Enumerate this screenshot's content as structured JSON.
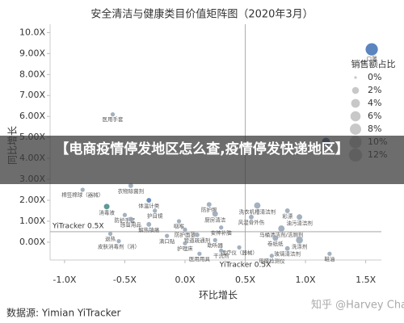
{
  "chart_data": {
    "type": "scatter",
    "title": "安全清洁与健康类目价值矩阵图（2020年3月）",
    "x_label": "环比增长",
    "y_label": "同比增长",
    "xlim": [
      -1.12,
      1.63
    ],
    "ylim": [
      -0.85,
      10.4
    ],
    "xticks": [
      {
        "value": -1.0,
        "label": "-1.0X"
      },
      {
        "value": -0.5,
        "label": "-0.5X"
      },
      {
        "value": 0,
        "label": "0.0X"
      },
      {
        "value": 0.5,
        "label": "0.5X"
      },
      {
        "value": 1.0,
        "label": "1.0X"
      },
      {
        "value": 1.5,
        "label": "1.5X"
      }
    ],
    "yticks": [
      {
        "value": 0,
        "label": "0.00X"
      },
      {
        "value": 1,
        "label": "1.00X"
      },
      {
        "value": 2,
        "label": "2.00X"
      },
      {
        "value": 3,
        "label": "3.00X"
      },
      {
        "value": 4,
        "label": "4.00X"
      },
      {
        "value": 5,
        "label": "5.00X"
      },
      {
        "value": 6,
        "label": "6.00X"
      },
      {
        "value": 7,
        "label": "7.00X"
      },
      {
        "value": 8,
        "label": "8.00X"
      },
      {
        "value": 9,
        "label": "9.00X"
      },
      {
        "value": 10,
        "label": "10.0X"
      }
    ],
    "ref_line": {
      "x": 0.5,
      "y": 0.5,
      "label": "YiTracker 0.5X"
    },
    "size_legend_title": "销售额占比",
    "size_legend": [
      {
        "value": 0,
        "label": "0%"
      },
      {
        "value": 2,
        "label": "2%"
      },
      {
        "value": 4,
        "label": "4%"
      },
      {
        "value": 6,
        "label": "6%"
      },
      {
        "value": 8,
        "label": "8%"
      },
      {
        "value": 10,
        "label": "10%"
      },
      {
        "value": 12,
        "label": "12%"
      }
    ],
    "points": [
      {
        "label": "口罩",
        "x": 1.55,
        "y": 9.2,
        "size": 10,
        "color": "#4a78b8"
      },
      {
        "label": null,
        "x": 1.17,
        "y": 4.8,
        "size": 3,
        "color": "#2e4f80"
      },
      {
        "label": "医用手套",
        "x": -0.6,
        "y": 6.1,
        "size": 0.3,
        "color": "#9aa9b8"
      },
      {
        "label": "棉签棉球（器械）",
        "x": -0.85,
        "y": 2.5,
        "size": 0.3,
        "color": "#9aa9b8"
      },
      {
        "label": "衣物除菌剂",
        "x": -0.45,
        "y": 2.7,
        "size": 0.5,
        "color": "#9aa9b8"
      },
      {
        "label": "消毒液",
        "x": -0.65,
        "y": 1.7,
        "size": 1,
        "color": "#4d8f8a"
      },
      {
        "label": "体温计类",
        "x": -0.3,
        "y": 2.0,
        "size": 0.5,
        "color": "#5b84b1"
      },
      {
        "label": "防护手套",
        "x": -0.5,
        "y": 1.3,
        "size": 0.3,
        "color": "#9aa9b8"
      },
      {
        "label": "护目镜",
        "x": -0.25,
        "y": 1.5,
        "size": 0.3,
        "color": "#9aa9b8"
      },
      {
        "label": "感冒用品",
        "x": -0.45,
        "y": 1.1,
        "size": 0.5,
        "color": "#9aa9b8"
      },
      {
        "label": "解热镇痛",
        "x": -0.3,
        "y": 0.85,
        "size": 0.5,
        "color": "#9aa9b8"
      },
      {
        "label": "咽喉",
        "x": -0.05,
        "y": 1.0,
        "size": 0.3,
        "color": "#9aa9b8"
      },
      {
        "label": "退热",
        "x": -0.62,
        "y": 0.4,
        "size": 0.3,
        "color": "#9aa9b8"
      },
      {
        "label": "滴口贴",
        "x": -0.15,
        "y": 0.3,
        "size": 0.3,
        "color": "#9aa9b8"
      },
      {
        "label": "皮肤消毒剂（消）",
        "x": -0.55,
        "y": 0.05,
        "size": 0.3,
        "color": "#9aa9b8"
      },
      {
        "label": "防护服",
        "x": 0.2,
        "y": 1.8,
        "size": 0.5,
        "color": "#9aa9b8"
      },
      {
        "label": "厨房清洁",
        "x": 0.25,
        "y": 1.35,
        "size": 1,
        "color": "#9aa9b8"
      },
      {
        "label": "洗衣机槽清洁剂",
        "x": 0.6,
        "y": 1.75,
        "size": 1.5,
        "color": "#9aa9b8"
      },
      {
        "label": "彩漂",
        "x": 0.85,
        "y": 1.5,
        "size": 0.5,
        "color": "#9aa9b8"
      },
      {
        "label": "风湿骨外伤",
        "x": 0.55,
        "y": 1.2,
        "size": 0.5,
        "color": "#9aa9b8"
      },
      {
        "label": "油污清洁剂",
        "x": 0.95,
        "y": 1.2,
        "size": 1,
        "color": "#9aa9b8"
      },
      {
        "label": "安神补脑",
        "x": 0.3,
        "y": 0.7,
        "size": 0.3,
        "color": "#9aa9b8"
      },
      {
        "label": "马桶清洁剂/洁厕剂",
        "x": 0.8,
        "y": 0.65,
        "size": 1.5,
        "color": "#9aa9b8"
      },
      {
        "label": "防护面罩",
        "x": 0.0,
        "y": 0.6,
        "size": 0.3,
        "color": "#9aa9b8"
      },
      {
        "label": "管道疏通剂",
        "x": 0.1,
        "y": 0.35,
        "size": 0.5,
        "color": "#9aa9b8"
      },
      {
        "label": "助听器",
        "x": 0.25,
        "y": 0.1,
        "size": 0.3,
        "color": "#9aa9b8"
      },
      {
        "label": "护理床",
        "x": 0.0,
        "y": -0.05,
        "size": 0.3,
        "color": "#9aa9b8"
      },
      {
        "label": "洗涤剂",
        "x": 0.95,
        "y": 0.1,
        "size": 2,
        "color": "#9aa9b8"
      },
      {
        "label": "卷纸纸",
        "x": 0.75,
        "y": 0.2,
        "size": 1,
        "color": "#9aa9b8"
      },
      {
        "label": "玻璃清洁剂",
        "x": 0.85,
        "y": -0.3,
        "size": 0.5,
        "color": "#9aa9b8"
      },
      {
        "label": "理疗仪（器械）",
        "x": 0.45,
        "y": -0.25,
        "size": 0.3,
        "color": "#9aa9b8"
      },
      {
        "label": "干洗剂",
        "x": 0.3,
        "y": -0.4,
        "size": 0.3,
        "color": "#9aa9b8"
      },
      {
        "label": "医用用具",
        "x": 0.12,
        "y": -0.55,
        "size": 0.3,
        "color": "#9aa9b8"
      },
      {
        "label": "甲醛检测仪",
        "x": 0.72,
        "y": -0.65,
        "size": 0.3,
        "color": "#9aa9b8"
      },
      {
        "label": "鞋油",
        "x": 1.2,
        "y": -0.55,
        "size": 0.3,
        "color": "#9aa9b8"
      }
    ],
    "source": "数据源: Yimian YiTracker",
    "watermark": "知乎 @Harvey Chan"
  },
  "overlay": {
    "text": "【电商疫情停发地区怎么查,疫情停发快递地区】"
  }
}
